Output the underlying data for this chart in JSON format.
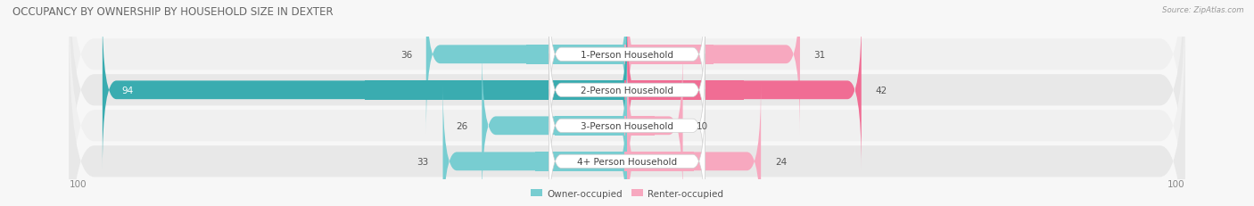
{
  "title": "OCCUPANCY BY OWNERSHIP BY HOUSEHOLD SIZE IN DEXTER",
  "source": "Source: ZipAtlas.com",
  "categories": [
    "1-Person Household",
    "2-Person Household",
    "3-Person Household",
    "4+ Person Household"
  ],
  "owner_values": [
    36,
    94,
    26,
    33
  ],
  "renter_values": [
    31,
    42,
    10,
    24
  ],
  "max_scale": 100,
  "owner_color_normal": "#78cdd1",
  "owner_color_full": "#3aacb0",
  "renter_color_normal": "#f7a8bf",
  "renter_color_full": "#f06d94",
  "row_colors": [
    "#f0f0f0",
    "#e8e8e8",
    "#f0f0f0",
    "#e8e8e8"
  ],
  "fig_bg": "#f7f7f7",
  "legend_owner": "Owner-occupied",
  "legend_renter": "Renter-occupied",
  "title_fontsize": 8.5,
  "label_fontsize": 7.5,
  "value_fontsize": 7.5,
  "tick_fontsize": 7.5
}
